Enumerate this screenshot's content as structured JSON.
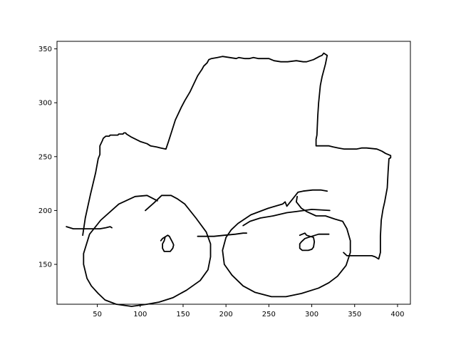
{
  "chart_data": {
    "type": "line",
    "title": "",
    "xlabel": "",
    "ylabel": "",
    "xlim": [
      3,
      415
    ],
    "ylim": [
      113,
      357
    ],
    "grid": false,
    "line_color": "#000000",
    "x_ticks": [
      50,
      100,
      150,
      200,
      250,
      300,
      350,
      400
    ],
    "y_ticks": [
      150,
      200,
      250,
      300,
      350
    ],
    "series": [
      {
        "points": [
          [
            33,
            177
          ],
          [
            36,
            193
          ],
          [
            42,
            215
          ],
          [
            48,
            235
          ],
          [
            51,
            248
          ],
          [
            53,
            252
          ],
          [
            53,
            260
          ],
          [
            56,
            265
          ],
          [
            57,
            267
          ],
          [
            60,
            269
          ],
          [
            64,
            269
          ],
          [
            65,
            270
          ],
          [
            74,
            270
          ],
          [
            75,
            271
          ],
          [
            80,
            271
          ],
          [
            81,
            272
          ],
          [
            83,
            272
          ],
          [
            84,
            271
          ],
          [
            90,
            268
          ],
          [
            100,
            264
          ],
          [
            108,
            262
          ],
          [
            112,
            260
          ],
          [
            119,
            259
          ],
          [
            124,
            258
          ],
          [
            130,
            257
          ],
          [
            133,
            264
          ],
          [
            137,
            274
          ],
          [
            141,
            284
          ],
          [
            148,
            296
          ],
          [
            152,
            302
          ],
          [
            158,
            310
          ],
          [
            167,
            325
          ],
          [
            172,
            331
          ],
          [
            174,
            334
          ],
          [
            178,
            337
          ],
          [
            180,
            340
          ],
          [
            183,
            341
          ],
          [
            190,
            342
          ],
          [
            196,
            343
          ],
          [
            204,
            342
          ],
          [
            212,
            341
          ],
          [
            215,
            342
          ],
          [
            222,
            341
          ],
          [
            227,
            341
          ],
          [
            232,
            342
          ],
          [
            238,
            341
          ],
          [
            243,
            341
          ],
          [
            250,
            341
          ],
          [
            256,
            339
          ],
          [
            264,
            338
          ],
          [
            272,
            338
          ],
          [
            282,
            339
          ],
          [
            290,
            338
          ],
          [
            294,
            338
          ],
          [
            302,
            340
          ],
          [
            309,
            343
          ],
          [
            312,
            344
          ],
          [
            314,
            346
          ],
          [
            318,
            344
          ],
          [
            316,
            336
          ],
          [
            312,
            324
          ],
          [
            310,
            316
          ],
          [
            308,
            300
          ],
          [
            307,
            288
          ],
          [
            306,
            270
          ],
          [
            305,
            266
          ],
          [
            305,
            260
          ],
          [
            320,
            260
          ],
          [
            325,
            259
          ],
          [
            331,
            258
          ],
          [
            338,
            257
          ],
          [
            344,
            257
          ],
          [
            352,
            257
          ],
          [
            358,
            258
          ],
          [
            364,
            258
          ],
          [
            376,
            257
          ],
          [
            382,
            255
          ],
          [
            386,
            253
          ],
          [
            392,
            251
          ],
          [
            392,
            249
          ],
          [
            390,
            248
          ],
          [
            389,
            236
          ],
          [
            388,
            221
          ],
          [
            385,
            208
          ],
          [
            383,
            201
          ],
          [
            381,
            191
          ],
          [
            380,
            176
          ],
          [
            380,
            161
          ],
          [
            378,
            155
          ],
          [
            374,
            157
          ],
          [
            370,
            158
          ],
          [
            355,
            158
          ],
          [
            341,
            158
          ],
          [
            337,
            161
          ]
        ]
      },
      {
        "points": [
          [
            14,
            185
          ],
          [
            22,
            183
          ],
          [
            32,
            183
          ],
          [
            42,
            183
          ],
          [
            53,
            183
          ],
          [
            60,
            184
          ],
          [
            65,
            185
          ],
          [
            67,
            184
          ]
        ]
      },
      {
        "points": [
          [
            120,
            209
          ],
          [
            108,
            214
          ],
          [
            94,
            213
          ],
          [
            75,
            206
          ],
          [
            54,
            191
          ],
          [
            41,
            178
          ],
          [
            34,
            160
          ],
          [
            34,
            150
          ],
          [
            38,
            137
          ],
          [
            43,
            130
          ],
          [
            51,
            123
          ],
          [
            59,
            117
          ],
          [
            72,
            113
          ],
          [
            90,
            111
          ],
          [
            108,
            113
          ],
          [
            122,
            115
          ],
          [
            138,
            119
          ],
          [
            154,
            126
          ],
          [
            170,
            135
          ],
          [
            179,
            145
          ],
          [
            182,
            157
          ],
          [
            182,
            169
          ],
          [
            177,
            180
          ],
          [
            165,
            193
          ],
          [
            152,
            206
          ],
          [
            143,
            211
          ],
          [
            136,
            214
          ],
          [
            125,
            214
          ],
          [
            116,
            207
          ],
          [
            106,
            200
          ]
        ]
      },
      {
        "points": [
          [
            124,
            172
          ],
          [
            126,
            174
          ],
          [
            132,
            177
          ],
          [
            134,
            176
          ],
          [
            138,
            170
          ],
          [
            139,
            168
          ],
          [
            138,
            165
          ],
          [
            135,
            162
          ],
          [
            134,
            162
          ],
          [
            130,
            162
          ],
          [
            128,
            162
          ],
          [
            126,
            165
          ],
          [
            126,
            169
          ],
          [
            128,
            172
          ],
          [
            129,
            175
          ]
        ]
      },
      {
        "points": [
          [
            167,
            176
          ],
          [
            186,
            176
          ],
          [
            198,
            177
          ],
          [
            211,
            178
          ],
          [
            220,
            179
          ],
          [
            224,
            179
          ]
        ]
      },
      {
        "points": [
          [
            220,
            186
          ],
          [
            228,
            190
          ],
          [
            240,
            193
          ],
          [
            255,
            195
          ],
          [
            271,
            198
          ],
          [
            282,
            199
          ],
          [
            300,
            201
          ],
          [
            321,
            200
          ]
        ]
      },
      {
        "points": [
          [
            283,
            213
          ],
          [
            282,
            208
          ],
          [
            288,
            202
          ],
          [
            294,
            199
          ],
          [
            305,
            195
          ],
          [
            316,
            195
          ],
          [
            327,
            192
          ],
          [
            336,
            190
          ],
          [
            341,
            183
          ],
          [
            345,
            172
          ],
          [
            345,
            161
          ],
          [
            340,
            149
          ],
          [
            330,
            139
          ],
          [
            320,
            133
          ],
          [
            308,
            128
          ],
          [
            288,
            123
          ],
          [
            270,
            120
          ],
          [
            253,
            120
          ],
          [
            234,
            124
          ],
          [
            220,
            130
          ],
          [
            207,
            140
          ],
          [
            198,
            150
          ],
          [
            196,
            163
          ],
          [
            200,
            175
          ],
          [
            206,
            182
          ],
          [
            214,
            188
          ],
          [
            229,
            196
          ],
          [
            249,
            202
          ],
          [
            266,
            206
          ],
          [
            269,
            208
          ],
          [
            271,
            204
          ],
          [
            279,
            212
          ],
          [
            284,
            217
          ],
          [
            290,
            218
          ],
          [
            301,
            219
          ],
          [
            311,
            219
          ],
          [
            318,
            218
          ]
        ]
      },
      {
        "points": [
          [
            286,
            177
          ],
          [
            292,
            179
          ],
          [
            294,
            177
          ],
          [
            302,
            175
          ],
          [
            303,
            171
          ],
          [
            302,
            166
          ],
          [
            300,
            164
          ],
          [
            296,
            163
          ],
          [
            289,
            163
          ],
          [
            286,
            165
          ],
          [
            286,
            169
          ],
          [
            288,
            171
          ],
          [
            292,
            174
          ],
          [
            296,
            175
          ],
          [
            308,
            178
          ],
          [
            320,
            178
          ]
        ]
      }
    ]
  }
}
